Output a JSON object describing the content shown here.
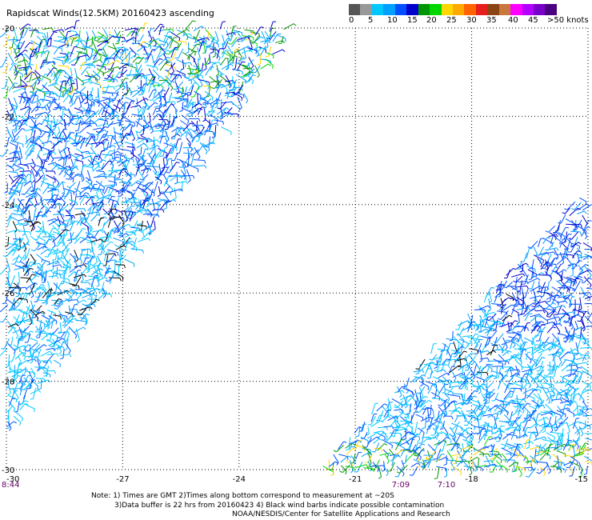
{
  "title": "Rapidscat Winds(12.5KM) 20160423 ascending",
  "scale": {
    "colors": [
      "#555555",
      "#999999",
      "#00c8ff",
      "#00a0ff",
      "#0050ff",
      "#0000cc",
      "#009600",
      "#00d700",
      "#ffd700",
      "#ffaa00",
      "#ff6400",
      "#e61e1e",
      "#8b4513",
      "#c8783c",
      "#ff00ff",
      "#b400ff",
      "#7800c8",
      "#4b0082"
    ],
    "labels": [
      "0",
      "5",
      "10",
      "15",
      "20",
      "25",
      "30",
      "35",
      "40",
      "45",
      ">50 knots"
    ]
  },
  "lat_labels": [
    "-20",
    "-22",
    "-24",
    "-26",
    "-28",
    "-30"
  ],
  "lon_labels": [
    "-30",
    "-27",
    "-24",
    "-21",
    "-18",
    "-15"
  ],
  "times": [
    {
      "text": "8:44",
      "color": "#660066"
    },
    {
      "text": "7:09",
      "color": "#660066"
    },
    {
      "text": "7:10",
      "color": "#660066"
    }
  ],
  "notes": [
    "Note: 1) Times are GMT 2)Times along bottom correspond to measurement at ~20S",
    "3)Data buffer is 22 hrs from 20160423 4) Black wind barbs indicate possible contamination",
    "NOAA/NESDIS/Center for Satellite Applications and Research"
  ],
  "map_data": {
    "lat_range": [
      -30,
      -20
    ],
    "lon_range": [
      -30,
      -15
    ],
    "grid_spacing_deg": 3,
    "swaths": [
      {
        "name": "left",
        "dominant_speed_knots": "5-15"
      },
      {
        "name": "right",
        "dominant_speed_knots": "5-15"
      }
    ]
  }
}
